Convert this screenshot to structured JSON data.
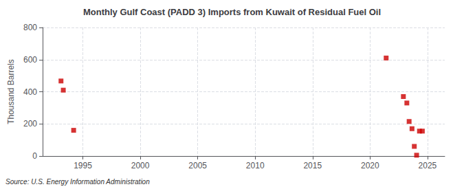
{
  "chart_data": {
    "type": "scatter",
    "title": "Monthly Gulf Coast (PADD 3) Imports from Kuwait of Residual Fuel Oil",
    "ylabel": "Thousand Barrels",
    "annotation": "Source: U.S. Energy Information Administration",
    "x": [
      1993.1,
      1993.3,
      1994.2,
      2021.4,
      2022.9,
      2023.2,
      2023.4,
      2023.65,
      2023.85,
      2024.05,
      2024.3,
      2024.55
    ],
    "values": [
      467,
      410,
      160,
      610,
      370,
      330,
      215,
      170,
      60,
      5,
      155,
      155
    ],
    "color": "#cc0000",
    "marker": "square",
    "xlim": [
      1991.5,
      2026.5
    ],
    "ylim": [
      0,
      800
    ],
    "xticks": [
      1995,
      2000,
      2005,
      2010,
      2015,
      2020,
      2025
    ],
    "yticks": [
      0,
      200,
      400,
      600,
      800
    ],
    "grid": true
  }
}
